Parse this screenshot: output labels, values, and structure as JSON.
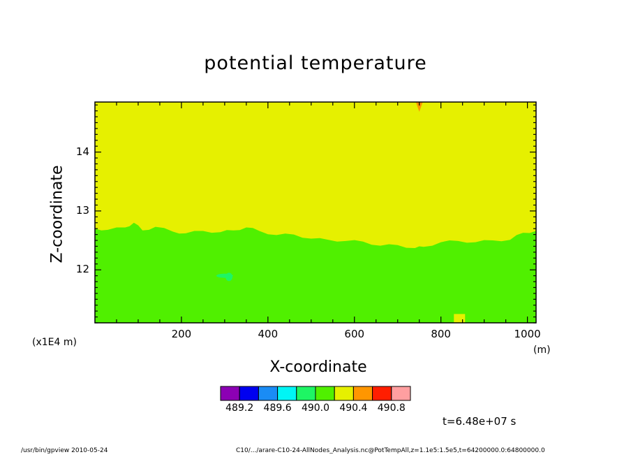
{
  "header": {
    "title": "potential temperature"
  },
  "footer": {
    "left": "/usr/bin/gpview  2010-05-24",
    "right": "C10/.../arare-C10-24-AllNodes_Analysis.nc@PotTempAll,z=1.1e5:1.5e5,t=64200000.0:64800000.0"
  },
  "annotations": {
    "time": "t=6.48e+07 s",
    "y_scale_unit": "(x1E4 m)",
    "x_unit": "(m)"
  },
  "chart_data": {
    "type": "heatmap",
    "title": "potential temperature",
    "xlabel": "X-coordinate",
    "ylabel": "Z-coordinate",
    "xlim": [
      0,
      1020
    ],
    "ylim": [
      11.1,
      14.85
    ],
    "x_ticks": [
      "200",
      "400",
      "600",
      "800",
      "1000"
    ],
    "x_tick_values": [
      200,
      400,
      600,
      800,
      1000
    ],
    "y_ticks": [
      "12",
      "13",
      "14"
    ],
    "y_tick_values": [
      12,
      13,
      14
    ],
    "grid": false,
    "colorbar": {
      "colors": [
        "#8c00b4",
        "#0000f0",
        "#1a8cf5",
        "#00f5f5",
        "#1ef564",
        "#50f000",
        "#e6f000",
        "#ff9600",
        "#ff1e00",
        "#ff9fa0"
      ],
      "labels": [
        "489.2",
        "489.6",
        "490.0",
        "490.4",
        "490.8"
      ]
    },
    "fill_colors": {
      "upper": "#e6f000",
      "lower": "#50f000",
      "patch": "#1ef564",
      "spot": "#ff9600"
    },
    "boundary": {
      "x": [
        0,
        30,
        70,
        90,
        110,
        140,
        180,
        210,
        250,
        290,
        320,
        350,
        380,
        420,
        460,
        500,
        540,
        580,
        620,
        660,
        700,
        740,
        760,
        800,
        840,
        880,
        920,
        960,
        990,
        1020
      ],
      "z": [
        12.7,
        12.68,
        12.72,
        12.8,
        12.67,
        12.73,
        12.65,
        12.62,
        12.66,
        12.64,
        12.67,
        12.72,
        12.66,
        12.59,
        12.6,
        12.53,
        12.51,
        12.49,
        12.48,
        12.41,
        12.42,
        12.37,
        12.39,
        12.47,
        12.49,
        12.47,
        12.5,
        12.51,
        12.63,
        12.66
      ]
    }
  }
}
